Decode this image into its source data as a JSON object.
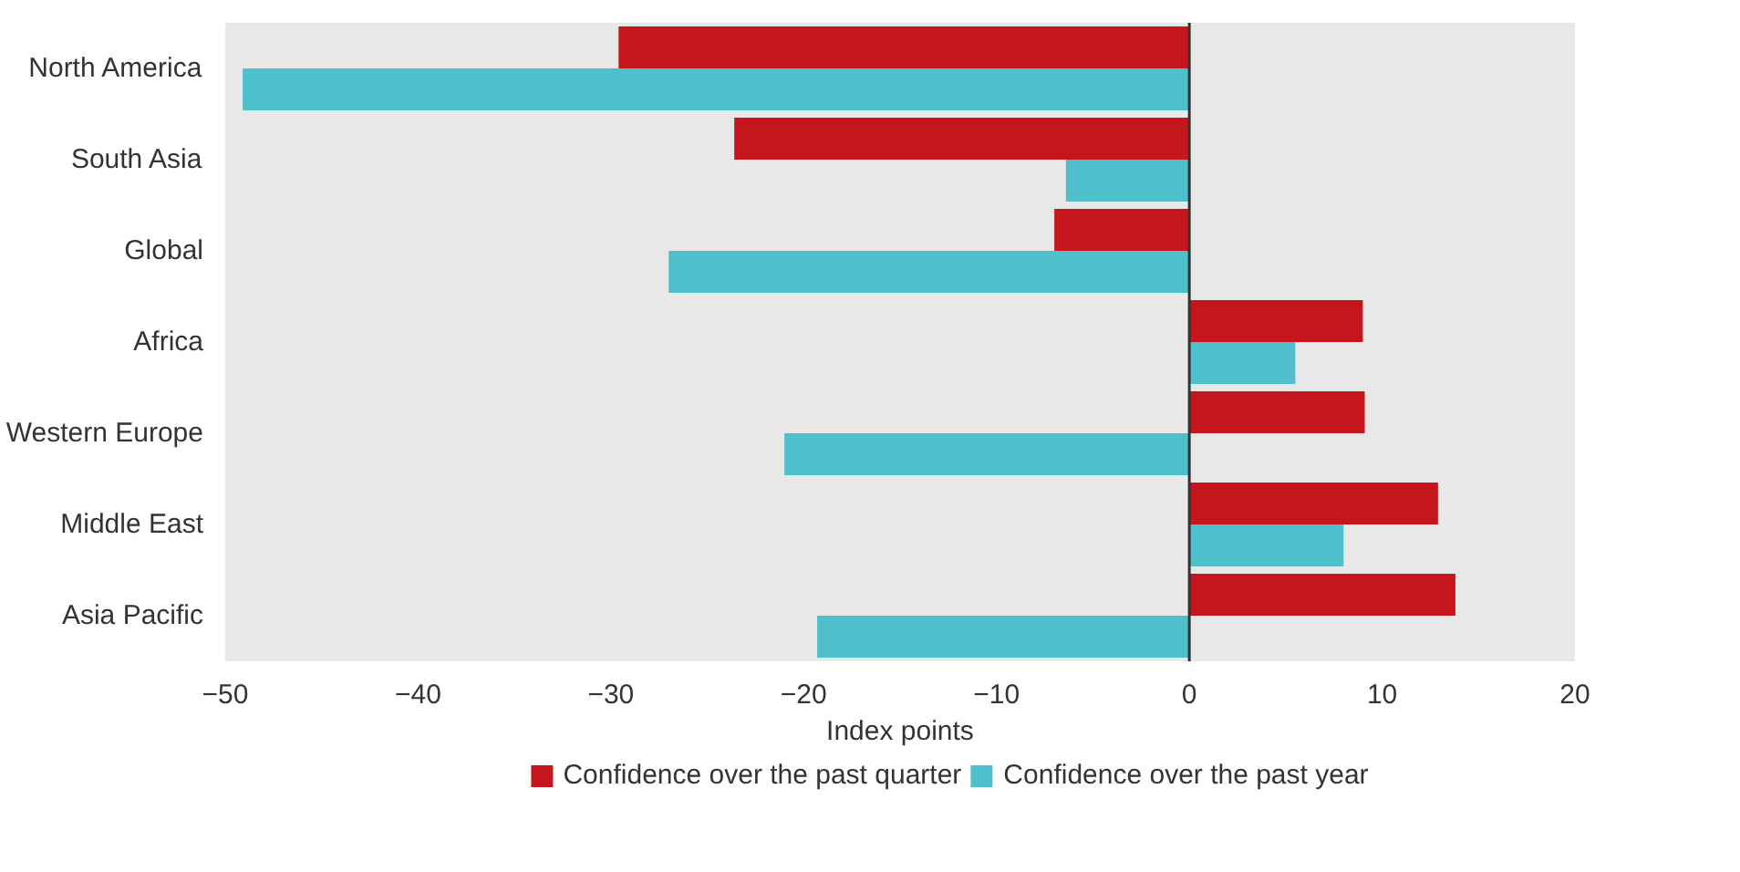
{
  "chart_data": {
    "type": "bar",
    "orientation": "horizontal",
    "xlabel": "Index points",
    "categories": [
      "North America",
      "South Asia",
      "Global",
      "Africa",
      "Western Europe",
      "Middle East",
      "Asia Pacific"
    ],
    "series": [
      {
        "name": "Confidence over the past quarter",
        "color": "#c4161c",
        "values": [
          -29.6,
          -23.6,
          -7.0,
          9.0,
          9.1,
          12.9,
          13.8
        ]
      },
      {
        "name": "Confidence over the past year",
        "color": "#4fbfcc",
        "values": [
          -49.1,
          -6.4,
          -27.0,
          5.5,
          -21.0,
          8.0,
          -19.3
        ]
      }
    ],
    "xlim": [
      -50,
      20
    ],
    "xticks": [
      -50,
      -40,
      -30,
      -20,
      -10,
      0,
      10,
      20
    ],
    "ref_lines": [
      {
        "axis": "x",
        "value": 0,
        "color": "#333333"
      }
    ],
    "legend": "bottom"
  }
}
